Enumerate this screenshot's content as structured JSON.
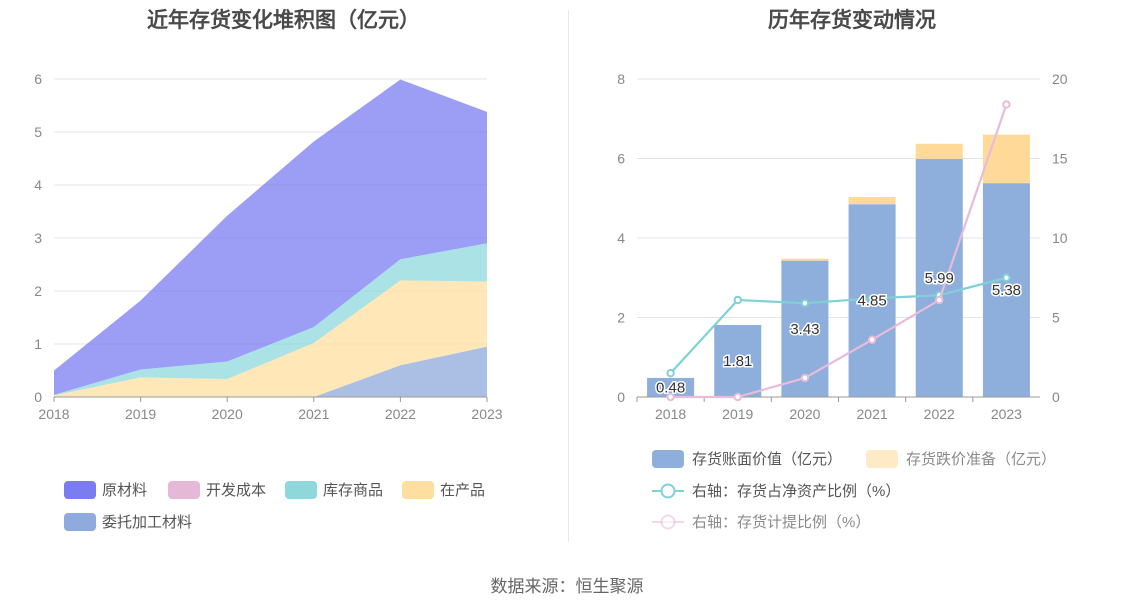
{
  "left_chart": {
    "title": "近年存货变化堆积图（亿元）",
    "chart_data": {
      "type": "area",
      "stacked": true,
      "x": [
        "2018",
        "2019",
        "2020",
        "2021",
        "2022",
        "2023"
      ],
      "ylim": [
        0,
        6
      ],
      "yticks": [
        0,
        1,
        2,
        3,
        4,
        5,
        6
      ],
      "grid": true,
      "legend_position": "bottom",
      "series": [
        {
          "name": "委托加工材料",
          "color": "#8faadc",
          "values": [
            0,
            0,
            0,
            0,
            0.6,
            0.95
          ]
        },
        {
          "name": "在产品",
          "color": "#ffdfa0",
          "values": [
            0.03,
            0.37,
            0.34,
            1.02,
            1.6,
            1.23
          ]
        },
        {
          "name": "库存商品",
          "color": "#8ed8dc",
          "values": [
            0.01,
            0.15,
            0.33,
            0.3,
            0.4,
            0.72
          ]
        },
        {
          "name": "开发成本",
          "color": "#e6b8d8",
          "values": [
            0,
            0,
            0,
            0,
            0,
            0
          ]
        },
        {
          "name": "原材料",
          "color": "#7b7cf0",
          "values": [
            0.46,
            1.3,
            2.75,
            3.5,
            3.39,
            2.48
          ]
        }
      ],
      "legend": [
        {
          "name": "原材料",
          "color": "#7b7cf0"
        },
        {
          "name": "开发成本",
          "color": "#e6b8d8"
        },
        {
          "name": "库存商品",
          "color": "#8ed8dc"
        },
        {
          "name": "在产品",
          "color": "#ffdfa0"
        },
        {
          "name": "委托加工材料",
          "color": "#8faadc"
        }
      ]
    }
  },
  "right_chart": {
    "title": "历年存货变动情况",
    "chart_data": {
      "type": "bar",
      "stacked": true,
      "categories": [
        "2018",
        "2019",
        "2020",
        "2021",
        "2022",
        "2023"
      ],
      "ylim": [
        0,
        8
      ],
      "yticks": [
        0,
        2,
        4,
        6,
        8
      ],
      "y2lim": [
        0,
        20
      ],
      "y2ticks": [
        0,
        5,
        10,
        15,
        20
      ],
      "grid": true,
      "legend_position": "bottom",
      "series": [
        {
          "name": "存货账面价值（亿元）",
          "kind": "bar",
          "axis": "left",
          "color": "#8eaedc",
          "values": [
            0.48,
            1.81,
            3.43,
            4.85,
            5.99,
            5.38
          ],
          "labels": [
            "0.48",
            "1.81",
            "3.43",
            "4.85",
            "5.99",
            "5.38"
          ]
        },
        {
          "name": "存货跌价准备（亿元）",
          "kind": "bar",
          "axis": "left",
          "color": "#ffd998",
          "values": [
            0,
            0,
            0.05,
            0.18,
            0.38,
            1.22
          ]
        },
        {
          "name": "右轴：存货占净资产比例（%）",
          "kind": "line",
          "axis": "right",
          "color": "#7fd1d6",
          "values": [
            1.5,
            6.1,
            5.9,
            6.2,
            6.4,
            7.5
          ]
        },
        {
          "name": "右轴：存货计提比例（%）",
          "kind": "line",
          "axis": "right",
          "color": "#e8bcd9",
          "values": [
            0,
            0,
            1.2,
            3.6,
            6.1,
            18.4
          ]
        }
      ]
    }
  },
  "source": "数据来源：恒生聚源"
}
